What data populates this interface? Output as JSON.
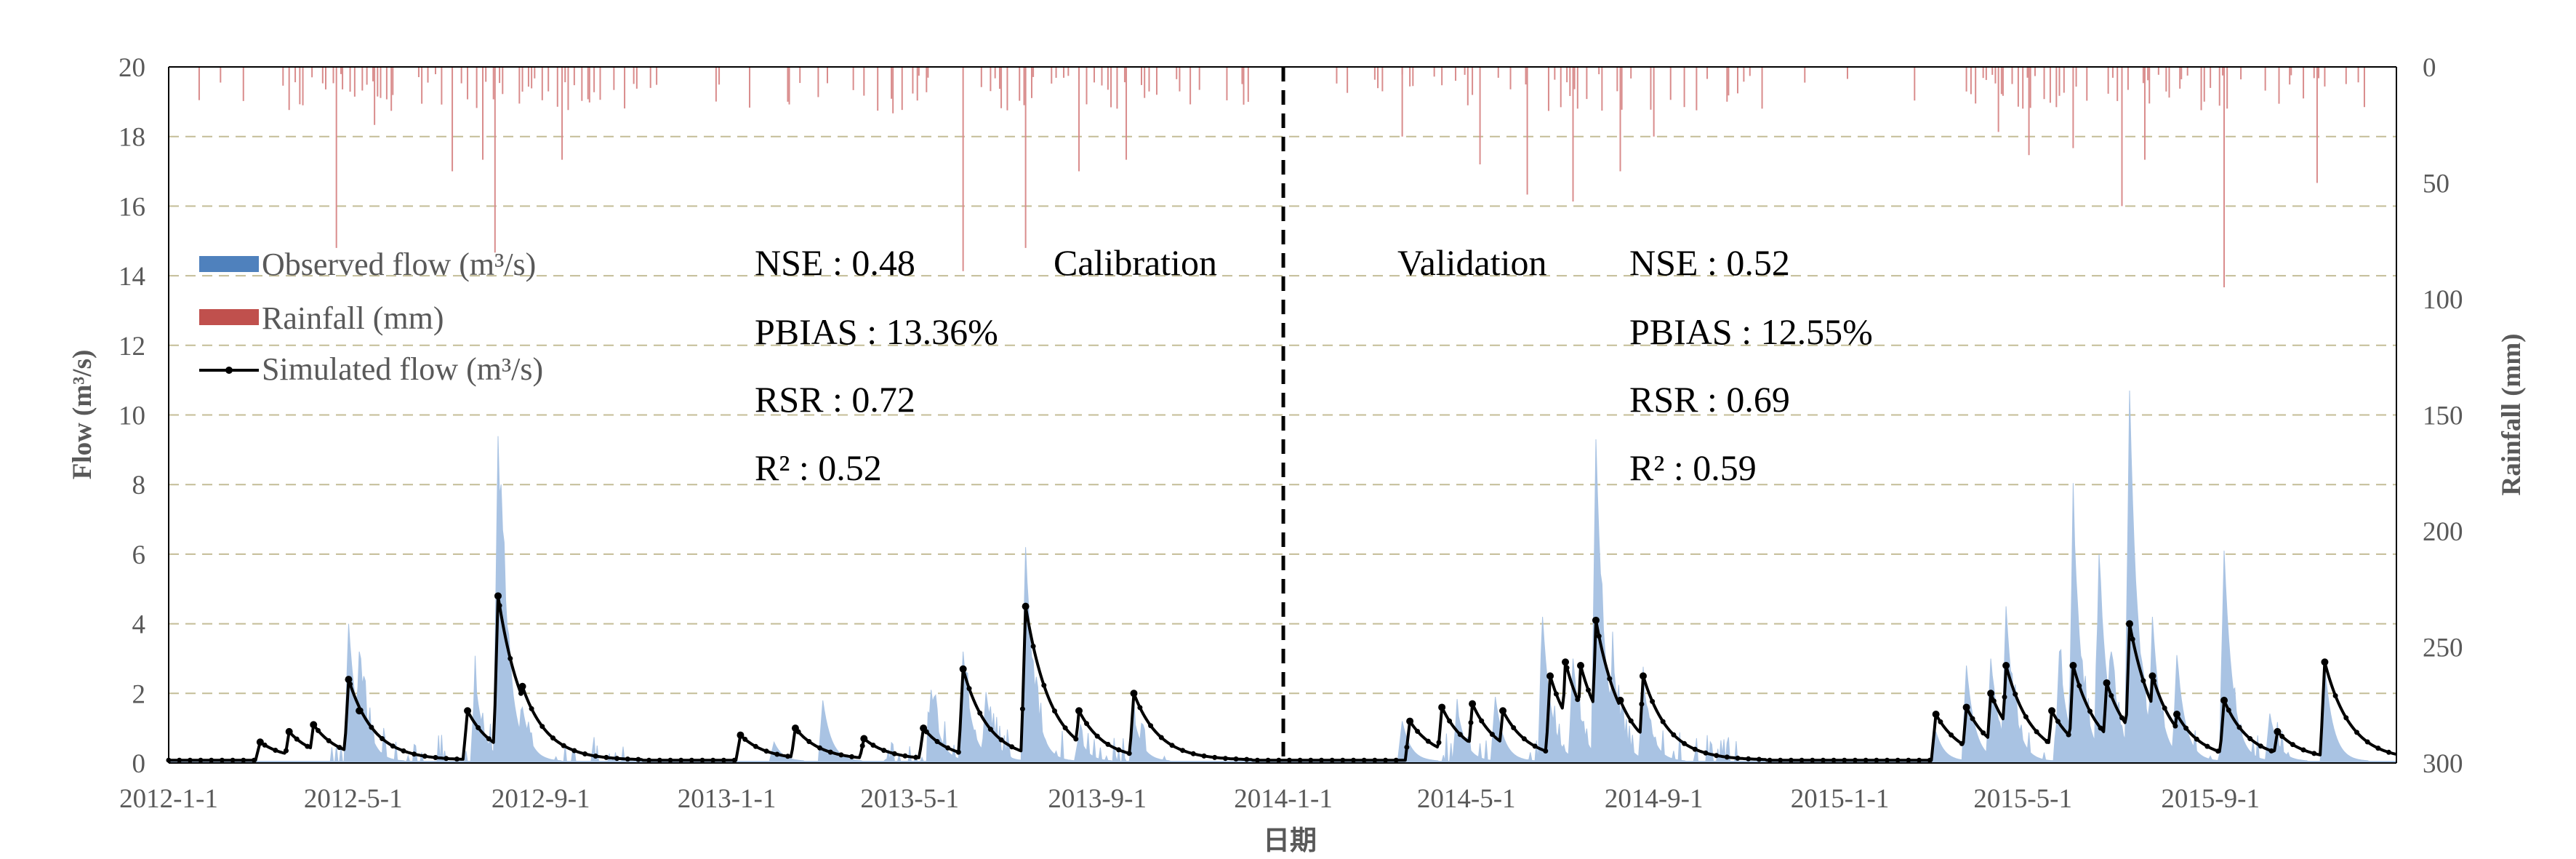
{
  "chart_data": {
    "type": "line",
    "xlabel": "日期",
    "ylabel_left": "Flow (m³/s)",
    "ylabel_right": "Rainfall (mm)",
    "ylim_left": [
      0,
      20
    ],
    "ylim_right_inverted": [
      0,
      300
    ],
    "x_range": [
      "2012-01-01",
      "2016-01-01"
    ],
    "x_ticks": [
      "2012-1-1",
      "2012-5-1",
      "2012-9-1",
      "2013-1-1",
      "2013-5-1",
      "2013-9-1",
      "2014-1-1",
      "2014-5-1",
      "2014-9-1",
      "2015-1-1",
      "2015-5-1",
      "2015-9-1"
    ],
    "y_ticks_left": [
      "0",
      "2",
      "4",
      "6",
      "8",
      "10",
      "12",
      "14",
      "16",
      "18",
      "20"
    ],
    "y_ticks_right": [
      "0",
      "50",
      "100",
      "150",
      "200",
      "250",
      "300"
    ],
    "grid": "horizontal dashed",
    "legend": {
      "position": "top-left",
      "entries": [
        "Observed flow (m³/s)",
        "Rainfall (mm)",
        "Simulated flow (m³/s)"
      ]
    },
    "divider_date": "2014-01-01",
    "periods": [
      {
        "label": "Calibration",
        "stats": [
          "NSE : 0.48",
          "PBIAS : 13.36%",
          "RSR : 0.72",
          "R² : 0.52"
        ]
      },
      {
        "label": "Validation",
        "stats": [
          "NSE : 0.52",
          "PBIAS : 12.55%",
          "RSR : 0.69",
          "R² : 0.59"
        ]
      }
    ],
    "colors": {
      "observed": "#a9c3e3",
      "rainfall": "#d98c8c",
      "simulated": "#000000",
      "legend_observed": "#4f81bd",
      "legend_rainfall": "#c0504d",
      "grid": "#c4bd97"
    },
    "observed_flow_peaks": [
      {
        "date": "2012-04-28",
        "value": 4.0
      },
      {
        "date": "2012-05-05",
        "value": 3.2
      },
      {
        "date": "2012-07-20",
        "value": 2.4
      },
      {
        "date": "2012-08-04",
        "value": 9.2
      },
      {
        "date": "2012-08-06",
        "value": 8.0
      },
      {
        "date": "2012-08-20",
        "value": 1.6
      },
      {
        "date": "2013-02-01",
        "value": 0.6
      },
      {
        "date": "2013-03-05",
        "value": 1.8
      },
      {
        "date": "2013-05-15",
        "value": 2.1
      },
      {
        "date": "2013-06-05",
        "value": 3.2
      },
      {
        "date": "2013-06-20",
        "value": 2.0
      },
      {
        "date": "2013-07-16",
        "value": 6.2
      },
      {
        "date": "2013-08-20",
        "value": 0.8
      },
      {
        "date": "2013-09-25",
        "value": 1.3
      },
      {
        "date": "2014-03-20",
        "value": 1.2
      },
      {
        "date": "2014-04-25",
        "value": 1.6
      },
      {
        "date": "2014-05-20",
        "value": 1.9
      },
      {
        "date": "2014-06-20",
        "value": 4.2
      },
      {
        "date": "2014-07-10",
        "value": 3.0
      },
      {
        "date": "2014-07-25",
        "value": 9.3
      },
      {
        "date": "2014-08-05",
        "value": 3.1
      },
      {
        "date": "2014-08-25",
        "value": 2.4
      },
      {
        "date": "2015-03-05",
        "value": 0.9
      },
      {
        "date": "2015-03-25",
        "value": 2.8
      },
      {
        "date": "2015-04-10",
        "value": 3.0
      },
      {
        "date": "2015-04-20",
        "value": 4.5
      },
      {
        "date": "2015-05-25",
        "value": 3.2
      },
      {
        "date": "2015-06-03",
        "value": 7.5
      },
      {
        "date": "2015-06-20",
        "value": 6.0
      },
      {
        "date": "2015-06-28",
        "value": 3.2
      },
      {
        "date": "2015-07-10",
        "value": 10.7
      },
      {
        "date": "2015-07-15",
        "value": 4.5
      },
      {
        "date": "2015-07-25",
        "value": 4.2
      },
      {
        "date": "2015-08-10",
        "value": 3.1
      },
      {
        "date": "2015-09-10",
        "value": 6.1
      },
      {
        "date": "2015-10-10",
        "value": 1.4
      },
      {
        "date": "2015-11-15",
        "value": 2.8
      }
    ],
    "simulated_flow_peaks": [
      {
        "date": "2012-03-01",
        "value": 0.6
      },
      {
        "date": "2012-03-20",
        "value": 0.9
      },
      {
        "date": "2012-04-05",
        "value": 1.1
      },
      {
        "date": "2012-04-28",
        "value": 2.4
      },
      {
        "date": "2012-05-05",
        "value": 1.5
      },
      {
        "date": "2012-07-15",
        "value": 1.5
      },
      {
        "date": "2012-08-04",
        "value": 4.8
      },
      {
        "date": "2012-08-20",
        "value": 2.2
      },
      {
        "date": "2013-01-10",
        "value": 0.8
      },
      {
        "date": "2013-02-15",
        "value": 1.0
      },
      {
        "date": "2013-04-01",
        "value": 0.7
      },
      {
        "date": "2013-05-10",
        "value": 1.0
      },
      {
        "date": "2013-06-05",
        "value": 2.7
      },
      {
        "date": "2013-07-16",
        "value": 4.5
      },
      {
        "date": "2013-08-20",
        "value": 1.5
      },
      {
        "date": "2013-09-25",
        "value": 2.0
      },
      {
        "date": "2014-03-25",
        "value": 1.2
      },
      {
        "date": "2014-04-15",
        "value": 1.6
      },
      {
        "date": "2014-05-05",
        "value": 1.7
      },
      {
        "date": "2014-05-25",
        "value": 1.5
      },
      {
        "date": "2014-06-25",
        "value": 2.5
      },
      {
        "date": "2014-07-05",
        "value": 2.9
      },
      {
        "date": "2014-07-15",
        "value": 2.8
      },
      {
        "date": "2014-07-25",
        "value": 4.1
      },
      {
        "date": "2014-08-10",
        "value": 1.8
      },
      {
        "date": "2014-08-25",
        "value": 2.5
      },
      {
        "date": "2015-03-05",
        "value": 1.4
      },
      {
        "date": "2015-03-25",
        "value": 1.6
      },
      {
        "date": "2015-04-10",
        "value": 2.0
      },
      {
        "date": "2015-04-20",
        "value": 2.8
      },
      {
        "date": "2015-05-20",
        "value": 1.5
      },
      {
        "date": "2015-06-03",
        "value": 2.8
      },
      {
        "date": "2015-06-25",
        "value": 2.3
      },
      {
        "date": "2015-07-10",
        "value": 4.0
      },
      {
        "date": "2015-07-25",
        "value": 2.5
      },
      {
        "date": "2015-08-10",
        "value": 1.4
      },
      {
        "date": "2015-09-10",
        "value": 1.8
      },
      {
        "date": "2015-10-15",
        "value": 0.9
      },
      {
        "date": "2015-11-15",
        "value": 2.9
      }
    ],
    "rainfall_events": [
      {
        "date": "2012-04-20",
        "value": 78
      },
      {
        "date": "2012-05-15",
        "value": 25
      },
      {
        "date": "2012-07-05",
        "value": 45
      },
      {
        "date": "2012-07-25",
        "value": 40
      },
      {
        "date": "2012-08-02",
        "value": 80
      },
      {
        "date": "2012-09-15",
        "value": 40
      },
      {
        "date": "2013-02-10",
        "value": 15
      },
      {
        "date": "2013-04-20",
        "value": 20
      },
      {
        "date": "2013-06-05",
        "value": 88
      },
      {
        "date": "2013-07-16",
        "value": 78
      },
      {
        "date": "2013-08-20",
        "value": 45
      },
      {
        "date": "2013-09-20",
        "value": 40
      },
      {
        "date": "2014-03-20",
        "value": 30
      },
      {
        "date": "2014-05-10",
        "value": 42
      },
      {
        "date": "2014-06-10",
        "value": 55
      },
      {
        "date": "2014-07-10",
        "value": 58
      },
      {
        "date": "2014-08-10",
        "value": 45
      },
      {
        "date": "2014-09-01",
        "value": 30
      },
      {
        "date": "2015-04-15",
        "value": 28
      },
      {
        "date": "2015-05-05",
        "value": 38
      },
      {
        "date": "2015-06-03",
        "value": 35
      },
      {
        "date": "2015-07-05",
        "value": 60
      },
      {
        "date": "2015-07-20",
        "value": 40
      },
      {
        "date": "2015-09-10",
        "value": 95
      },
      {
        "date": "2015-11-10",
        "value": 50
      }
    ]
  }
}
